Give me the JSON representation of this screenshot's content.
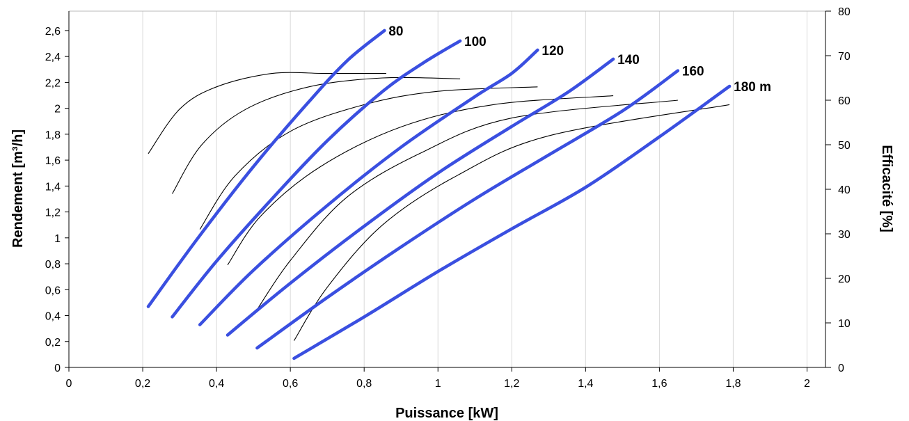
{
  "chart_data": {
    "type": "line",
    "xlabel": "Puissance [kW]",
    "ylabel": "Rendement [m³/h]",
    "y2label": "Efficacité [%]",
    "xlim": [
      0,
      2.05
    ],
    "ylim": [
      0,
      2.75
    ],
    "y2lim": [
      0,
      80
    ],
    "x_ticks": [
      0,
      0.2,
      0.4,
      0.6,
      0.8,
      1,
      1.2,
      1.4,
      1.6,
      1.8,
      2
    ],
    "x_tick_labels": [
      "0",
      "0,2",
      "0,4",
      "0,6",
      "0,8",
      "1",
      "1,2",
      "1,4",
      "1,6",
      "1,8",
      "2"
    ],
    "y_ticks": [
      0,
      0.2,
      0.4,
      0.6,
      0.8,
      1,
      1.2,
      1.4,
      1.6,
      1.8,
      2,
      2.2,
      2.4,
      2.6
    ],
    "y_tick_labels": [
      "0",
      "0,2",
      "0,4",
      "0,6",
      "0,8",
      "1",
      "1,2",
      "1,4",
      "1,6",
      "1,8",
      "2",
      "2,2",
      "2,4",
      "2,6"
    ],
    "y2_ticks": [
      0,
      10,
      20,
      30,
      40,
      50,
      60,
      70,
      80
    ],
    "y2_tick_labels": [
      "0",
      "10",
      "20",
      "30",
      "40",
      "50",
      "60",
      "70",
      "80"
    ],
    "grid": "vertical",
    "flow_series": [
      {
        "label": "80",
        "color": "#3a4fe0",
        "points": [
          [
            0.215,
            0.47
          ],
          [
            0.35,
            1.0
          ],
          [
            0.5,
            1.55
          ],
          [
            0.65,
            2.05
          ],
          [
            0.755,
            2.37
          ],
          [
            0.855,
            2.6
          ]
        ]
      },
      {
        "label": "100",
        "color": "#3a4fe0",
        "points": [
          [
            0.28,
            0.39
          ],
          [
            0.4,
            0.82
          ],
          [
            0.55,
            1.3
          ],
          [
            0.7,
            1.75
          ],
          [
            0.85,
            2.13
          ],
          [
            0.96,
            2.35
          ],
          [
            1.06,
            2.52
          ]
        ]
      },
      {
        "label": "120",
        "color": "#3a4fe0",
        "points": [
          [
            0.355,
            0.33
          ],
          [
            0.5,
            0.75
          ],
          [
            0.7,
            1.25
          ],
          [
            0.9,
            1.7
          ],
          [
            1.1,
            2.09
          ],
          [
            1.2,
            2.27
          ],
          [
            1.27,
            2.45
          ]
        ]
      },
      {
        "label": "140",
        "color": "#3a4fe0",
        "points": [
          [
            0.43,
            0.25
          ],
          [
            0.6,
            0.65
          ],
          [
            0.8,
            1.09
          ],
          [
            1.0,
            1.5
          ],
          [
            1.2,
            1.86
          ],
          [
            1.35,
            2.12
          ],
          [
            1.475,
            2.38
          ]
        ]
      },
      {
        "label": "160",
        "color": "#3a4fe0",
        "points": [
          [
            0.51,
            0.15
          ],
          [
            0.7,
            0.54
          ],
          [
            0.9,
            0.93
          ],
          [
            1.1,
            1.3
          ],
          [
            1.3,
            1.64
          ],
          [
            1.5,
            1.98
          ],
          [
            1.65,
            2.29
          ]
        ]
      },
      {
        "label": "180 m",
        "color": "#3a4fe0",
        "points": [
          [
            0.61,
            0.07
          ],
          [
            0.8,
            0.39
          ],
          [
            1.0,
            0.74
          ],
          [
            1.2,
            1.07
          ],
          [
            1.4,
            1.39
          ],
          [
            1.6,
            1.78
          ],
          [
            1.79,
            2.17
          ]
        ]
      }
    ],
    "efficiency_series": [
      {
        "points": [
          [
            0.215,
            48
          ],
          [
            0.3,
            58
          ],
          [
            0.4,
            63
          ],
          [
            0.55,
            66
          ],
          [
            0.7,
            66
          ],
          [
            0.86,
            66
          ]
        ]
      },
      {
        "points": [
          [
            0.28,
            39
          ],
          [
            0.36,
            50
          ],
          [
            0.48,
            58
          ],
          [
            0.65,
            63
          ],
          [
            0.85,
            65
          ],
          [
            1.06,
            64.8
          ]
        ]
      },
      {
        "points": [
          [
            0.355,
            31
          ],
          [
            0.45,
            43
          ],
          [
            0.6,
            53
          ],
          [
            0.8,
            59
          ],
          [
            1.0,
            62
          ],
          [
            1.27,
            63
          ]
        ]
      },
      {
        "points": [
          [
            0.43,
            23
          ],
          [
            0.52,
            34
          ],
          [
            0.68,
            45
          ],
          [
            0.9,
            54
          ],
          [
            1.15,
            59
          ],
          [
            1.475,
            61
          ]
        ]
      },
      {
        "points": [
          [
            0.51,
            13
          ],
          [
            0.6,
            24
          ],
          [
            0.75,
            38
          ],
          [
            0.95,
            48
          ],
          [
            1.2,
            56
          ],
          [
            1.65,
            60
          ]
        ]
      },
      {
        "points": [
          [
            0.61,
            6
          ],
          [
            0.7,
            18
          ],
          [
            0.85,
            32
          ],
          [
            1.05,
            43
          ],
          [
            1.3,
            52
          ],
          [
            1.79,
            59
          ]
        ]
      }
    ]
  }
}
